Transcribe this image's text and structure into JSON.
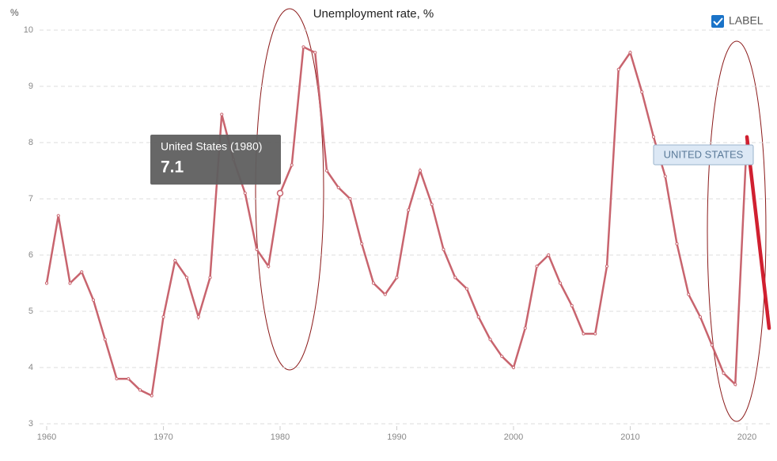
{
  "chart_data": {
    "type": "line",
    "title": "Unemployment rate, %",
    "y_label": "%",
    "x": [
      1960,
      1961,
      1962,
      1963,
      1964,
      1965,
      1966,
      1967,
      1968,
      1969,
      1970,
      1971,
      1972,
      1973,
      1974,
      1975,
      1976,
      1977,
      1978,
      1979,
      1980,
      1981,
      1982,
      1983,
      1984,
      1985,
      1986,
      1987,
      1988,
      1989,
      1990,
      1991,
      1992,
      1993,
      1994,
      1995,
      1996,
      1997,
      1998,
      1999,
      2000,
      2001,
      2002,
      2003,
      2004,
      2005,
      2006,
      2007,
      2008,
      2009,
      2010,
      2011,
      2012,
      2013,
      2014,
      2015,
      2016,
      2017,
      2018,
      2019,
      2020
    ],
    "series": [
      {
        "name": "United States",
        "color": "#c8646e",
        "values": [
          5.5,
          6.7,
          5.5,
          5.7,
          5.2,
          4.5,
          3.8,
          3.8,
          3.6,
          3.5,
          4.9,
          5.9,
          5.6,
          4.9,
          5.6,
          8.5,
          7.7,
          7.1,
          6.1,
          5.8,
          7.1,
          7.6,
          9.7,
          9.6,
          7.5,
          7.2,
          7.0,
          6.2,
          5.5,
          5.3,
          5.6,
          6.8,
          7.5,
          6.9,
          6.1,
          5.6,
          5.4,
          4.9,
          4.5,
          4.2,
          4.0,
          4.7,
          5.8,
          6.0,
          5.5,
          5.1,
          4.6,
          4.6,
          5.8,
          9.3,
          9.6,
          8.9,
          8.1,
          7.4,
          6.2,
          5.3,
          4.9,
          4.4,
          3.9,
          3.7,
          8.1
        ]
      }
    ],
    "highlight": {
      "color": "#d02030",
      "x": [
        2020,
        2021.9
      ],
      "values": [
        8.1,
        4.7
      ]
    },
    "series_label": "UNITED STATES",
    "legend_label": "LABEL",
    "tooltip": {
      "title": "United States (1980)",
      "index": 20
    },
    "xlim": [
      1960,
      2022
    ],
    "xticks": [
      1960,
      1970,
      1980,
      1990,
      2000,
      2010,
      2020
    ],
    "ylim": [
      3,
      10
    ],
    "yticks": [
      3,
      4,
      5,
      6,
      7,
      8,
      9,
      10
    ],
    "grid": true
  }
}
